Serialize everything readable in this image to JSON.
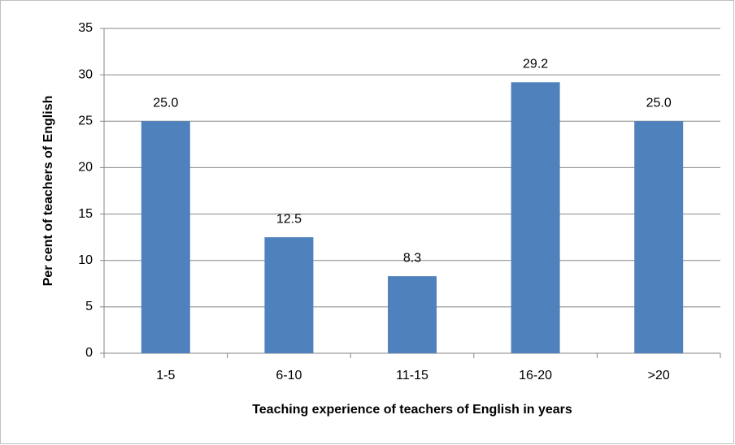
{
  "chart_data": {
    "type": "bar",
    "x_label": "Teaching experience of teachers of English in years",
    "y_label": "Per cent of teachers of English",
    "categories": [
      "1-5",
      "6-10",
      "11-15",
      "16-20",
      ">20"
    ],
    "values": [
      25.0,
      12.5,
      8.3,
      29.2,
      25.0
    ],
    "value_labels": [
      "25.0",
      "12.5",
      "8.3",
      "29.2",
      "25.0"
    ],
    "color": "#4f81bd",
    "ylim": [
      0,
      35
    ],
    "yticks": [
      0,
      5,
      10,
      15,
      20,
      25,
      30,
      35
    ],
    "grid": true
  }
}
